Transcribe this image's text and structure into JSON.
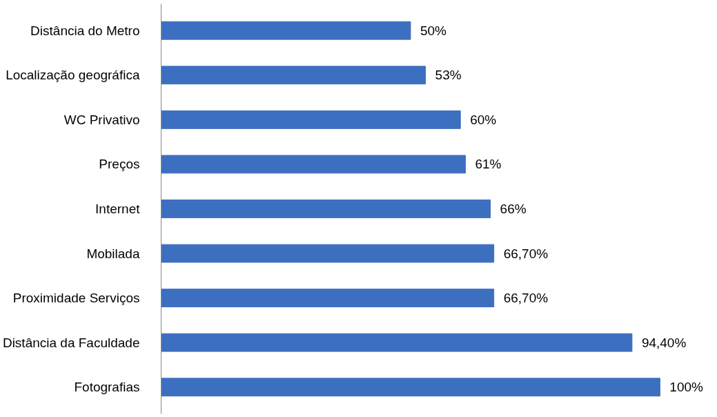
{
  "chart_data": {
    "type": "bar",
    "orientation": "horizontal",
    "categories": [
      "Distância do Metro",
      "Localização geográfica",
      "WC Privativo",
      "Preços",
      "Internet",
      "Mobilada",
      "Proximidade Serviços",
      "Distância da Faculdade",
      "Fotografias"
    ],
    "values": [
      50,
      53,
      60,
      61,
      66,
      66.7,
      66.7,
      94.4,
      100
    ],
    "value_labels": [
      "50%",
      "53%",
      "60%",
      "61%",
      "66%",
      "66,70%",
      "66,70%",
      "94,40%",
      "100%"
    ],
    "color": "#3d6fc0",
    "grid": false
  }
}
